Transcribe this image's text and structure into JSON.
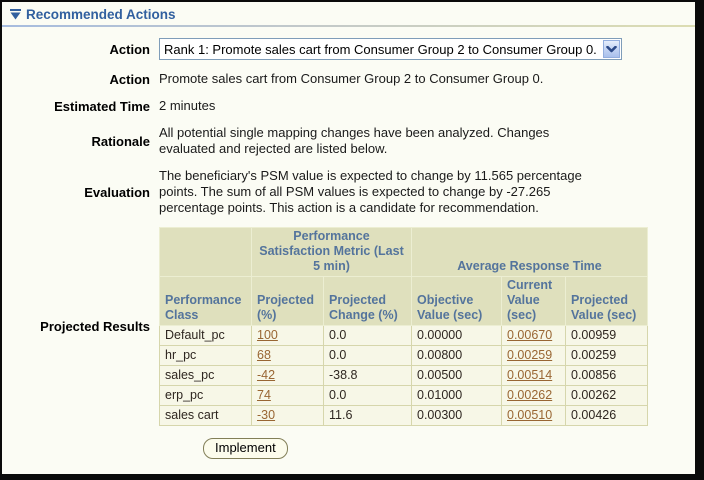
{
  "page": {
    "title": "Recommended Actions"
  },
  "form": {
    "action_select": {
      "label": "Action",
      "value": "Rank 1: Promote sales cart from Consumer Group 2 to Consumer Group 0."
    },
    "action": {
      "label": "Action",
      "value": "Promote sales cart from Consumer Group 2 to Consumer Group 0."
    },
    "estimated_time": {
      "label": "Estimated Time",
      "value": "2 minutes"
    },
    "rationale": {
      "label": "Rationale",
      "value": "All potential single mapping changes have been analyzed. Changes evaluated and rejected are listed below."
    },
    "evaluation": {
      "label": "Evaluation",
      "value": "The beneficiary's PSM value is expected to change by 11.565 percentage points. The sum of all PSM values is expected to change by -27.265 percentage points. This action is a candidate for recommendation."
    },
    "projected_results_label": "Projected Results"
  },
  "table": {
    "group_headers": [
      {
        "label": "",
        "colspan": 1
      },
      {
        "label": "Performance Satisfaction Metric (Last 5 min)",
        "colspan": 2
      },
      {
        "label": "Average Response Time",
        "colspan": 3
      }
    ],
    "columns": [
      "Performance Class",
      "Projected (%)",
      "Projected Change (%)",
      "Objective Value (sec)",
      "Current Value (sec)",
      "Projected Value (sec)"
    ],
    "link_columns": [
      1,
      4
    ],
    "rows": [
      [
        "Default_pc",
        "100",
        "0.0",
        "0.00000",
        "0.00670",
        "0.00959"
      ],
      [
        "hr_pc",
        "68",
        "0.0",
        "0.00800",
        "0.00259",
        "0.00259"
      ],
      [
        "sales_pc",
        "-42",
        "-38.8",
        "0.00500",
        "0.00514",
        "0.00856"
      ],
      [
        "erp_pc",
        "74",
        "0.0",
        "0.01000",
        "0.00262",
        "0.00262"
      ],
      [
        "sales cart",
        "-30",
        "11.6",
        "0.00300",
        "0.00510",
        "0.00426"
      ]
    ]
  },
  "buttons": {
    "implement": "Implement"
  },
  "colors": {
    "title_text": "#31609f",
    "table_header_bg": "#dfe0bd",
    "table_header_text": "#54749c",
    "table_body_bg": "#f7f7e7",
    "link_text": "#996633",
    "frame_border": "#0a0a0a"
  }
}
